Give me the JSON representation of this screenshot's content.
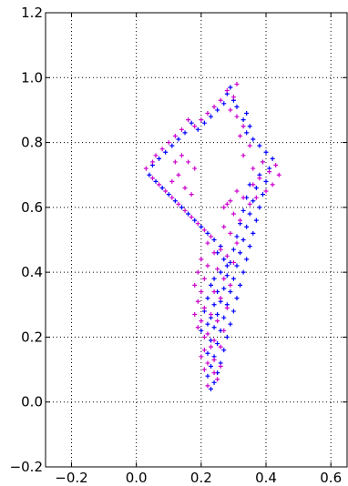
{
  "chart_data": {
    "type": "scatter",
    "title": "",
    "xlabel": "",
    "ylabel": "",
    "xlim": [
      -0.28,
      0.65
    ],
    "ylim": [
      -0.2,
      1.2
    ],
    "xticks": [
      -0.2,
      0.0,
      0.2,
      0.4,
      0.6
    ],
    "yticks": [
      -0.2,
      0.0,
      0.2,
      0.4,
      0.6,
      0.8,
      1.0,
      1.2
    ],
    "xtick_labels": [
      "−0.2",
      "0.0",
      "0.2",
      "0.4",
      "0.6"
    ],
    "ytick_labels": [
      "−0.2",
      "0.0",
      "0.2",
      "0.4",
      "0.6",
      "0.8",
      "1.0",
      "1.2"
    ],
    "grid": true,
    "grid_style": "dotted",
    "legend": false,
    "marker": "+",
    "series": [
      {
        "color": "#0000ff",
        "points": [
          [
            0.23,
            0.04
          ],
          [
            0.24,
            0.06
          ],
          [
            0.22,
            0.08
          ],
          [
            0.25,
            0.09
          ],
          [
            0.23,
            0.11
          ],
          [
            0.26,
            0.12
          ],
          [
            0.24,
            0.14
          ],
          [
            0.22,
            0.15
          ],
          [
            0.27,
            0.16
          ],
          [
            0.25,
            0.18
          ],
          [
            0.23,
            0.19
          ],
          [
            0.28,
            0.2
          ],
          [
            0.26,
            0.22
          ],
          [
            0.24,
            0.23
          ],
          [
            0.29,
            0.24
          ],
          [
            0.27,
            0.26
          ],
          [
            0.25,
            0.27
          ],
          [
            0.3,
            0.28
          ],
          [
            0.28,
            0.3
          ],
          [
            0.26,
            0.31
          ],
          [
            0.31,
            0.32
          ],
          [
            0.29,
            0.34
          ],
          [
            0.27,
            0.35
          ],
          [
            0.32,
            0.36
          ],
          [
            0.3,
            0.38
          ],
          [
            0.28,
            0.39
          ],
          [
            0.33,
            0.4
          ],
          [
            0.31,
            0.42
          ],
          [
            0.29,
            0.43
          ],
          [
            0.34,
            0.44
          ],
          [
            0.32,
            0.46
          ],
          [
            0.3,
            0.47
          ],
          [
            0.35,
            0.48
          ],
          [
            0.33,
            0.5
          ],
          [
            0.31,
            0.51
          ],
          [
            0.36,
            0.52
          ],
          [
            0.34,
            0.54
          ],
          [
            0.32,
            0.55
          ],
          [
            0.37,
            0.56
          ],
          [
            0.35,
            0.58
          ],
          [
            0.33,
            0.59
          ],
          [
            0.38,
            0.6
          ],
          [
            0.36,
            0.62
          ],
          [
            0.34,
            0.63
          ],
          [
            0.39,
            0.64
          ],
          [
            0.37,
            0.66
          ],
          [
            0.35,
            0.67
          ],
          [
            0.4,
            0.68
          ],
          [
            0.38,
            0.7
          ],
          [
            0.41,
            0.72
          ],
          [
            0.39,
            0.74
          ],
          [
            0.42,
            0.75
          ],
          [
            0.4,
            0.77
          ],
          [
            0.38,
            0.79
          ],
          [
            0.36,
            0.81
          ],
          [
            0.34,
            0.83
          ],
          [
            0.35,
            0.85
          ],
          [
            0.33,
            0.87
          ],
          [
            0.34,
            0.89
          ],
          [
            0.31,
            0.91
          ],
          [
            0.3,
            0.93
          ],
          [
            0.28,
            0.95
          ],
          [
            0.29,
            0.97
          ],
          [
            0.27,
            0.92
          ],
          [
            0.25,
            0.9
          ],
          [
            0.23,
            0.88
          ],
          [
            0.21,
            0.86
          ],
          [
            0.19,
            0.84
          ],
          [
            0.17,
            0.86
          ],
          [
            0.15,
            0.83
          ],
          [
            0.13,
            0.81
          ],
          [
            0.11,
            0.79
          ],
          [
            0.09,
            0.77
          ],
          [
            0.07,
            0.75
          ],
          [
            0.05,
            0.73
          ],
          [
            0.04,
            0.7
          ],
          [
            0.06,
            0.68
          ],
          [
            0.08,
            0.66
          ],
          [
            0.1,
            0.64
          ],
          [
            0.12,
            0.62
          ],
          [
            0.14,
            0.6
          ],
          [
            0.16,
            0.58
          ],
          [
            0.18,
            0.56
          ],
          [
            0.2,
            0.54
          ],
          [
            0.22,
            0.52
          ],
          [
            0.24,
            0.5
          ],
          [
            0.26,
            0.48
          ],
          [
            0.25,
            0.46
          ],
          [
            0.27,
            0.44
          ],
          [
            0.28,
            0.42
          ],
          [
            0.26,
            0.4
          ],
          [
            0.24,
            0.38
          ],
          [
            0.23,
            0.36
          ],
          [
            0.25,
            0.34
          ],
          [
            0.22,
            0.32
          ],
          [
            0.24,
            0.3
          ],
          [
            0.21,
            0.28
          ],
          [
            0.23,
            0.26
          ],
          [
            0.22,
            0.24
          ],
          [
            0.2,
            0.22
          ]
        ]
      },
      {
        "color": "#cc00cc",
        "points": [
          [
            0.22,
            0.05
          ],
          [
            0.25,
            0.07
          ],
          [
            0.21,
            0.1
          ],
          [
            0.26,
            0.11
          ],
          [
            0.24,
            0.13
          ],
          [
            0.21,
            0.16
          ],
          [
            0.26,
            0.17
          ],
          [
            0.24,
            0.19
          ],
          [
            0.22,
            0.21
          ],
          [
            0.27,
            0.22
          ],
          [
            0.25,
            0.25
          ],
          [
            0.23,
            0.27
          ],
          [
            0.28,
            0.29
          ],
          [
            0.26,
            0.32
          ],
          [
            0.24,
            0.34
          ],
          [
            0.29,
            0.36
          ],
          [
            0.27,
            0.38
          ],
          [
            0.25,
            0.41
          ],
          [
            0.3,
            0.43
          ],
          [
            0.28,
            0.45
          ],
          [
            0.26,
            0.47
          ],
          [
            0.31,
            0.49
          ],
          [
            0.29,
            0.52
          ],
          [
            0.27,
            0.54
          ],
          [
            0.32,
            0.56
          ],
          [
            0.3,
            0.58
          ],
          [
            0.28,
            0.61
          ],
          [
            0.33,
            0.63
          ],
          [
            0.31,
            0.65
          ],
          [
            0.36,
            0.67
          ],
          [
            0.38,
            0.69
          ],
          [
            0.36,
            0.72
          ],
          [
            0.39,
            0.74
          ],
          [
            0.41,
            0.71
          ],
          [
            0.43,
            0.73
          ],
          [
            0.44,
            0.7
          ],
          [
            0.42,
            0.67
          ],
          [
            0.4,
            0.65
          ],
          [
            0.37,
            0.63
          ],
          [
            0.35,
            0.61
          ],
          [
            0.33,
            0.76
          ],
          [
            0.35,
            0.79
          ],
          [
            0.32,
            0.82
          ],
          [
            0.33,
            0.85
          ],
          [
            0.31,
            0.88
          ],
          [
            0.29,
            0.9
          ],
          [
            0.3,
            0.94
          ],
          [
            0.28,
            0.96
          ],
          [
            0.31,
            0.98
          ],
          [
            0.26,
            0.93
          ],
          [
            0.24,
            0.91
          ],
          [
            0.22,
            0.89
          ],
          [
            0.2,
            0.87
          ],
          [
            0.18,
            0.85
          ],
          [
            0.16,
            0.87
          ],
          [
            0.14,
            0.84
          ],
          [
            0.12,
            0.82
          ],
          [
            0.1,
            0.8
          ],
          [
            0.08,
            0.78
          ],
          [
            0.06,
            0.76
          ],
          [
            0.05,
            0.74
          ],
          [
            0.03,
            0.72
          ],
          [
            0.05,
            0.69
          ],
          [
            0.07,
            0.67
          ],
          [
            0.09,
            0.65
          ],
          [
            0.11,
            0.63
          ],
          [
            0.13,
            0.61
          ],
          [
            0.15,
            0.59
          ],
          [
            0.17,
            0.57
          ],
          [
            0.19,
            0.55
          ],
          [
            0.21,
            0.53
          ],
          [
            0.23,
            0.51
          ],
          [
            0.22,
            0.49
          ],
          [
            0.24,
            0.46
          ],
          [
            0.2,
            0.44
          ],
          [
            0.22,
            0.42
          ],
          [
            0.19,
            0.4
          ],
          [
            0.21,
            0.38
          ],
          [
            0.18,
            0.36
          ],
          [
            0.2,
            0.34
          ],
          [
            0.19,
            0.31
          ],
          [
            0.21,
            0.29
          ],
          [
            0.18,
            0.27
          ],
          [
            0.2,
            0.25
          ],
          [
            0.19,
            0.23
          ],
          [
            0.21,
            0.2
          ],
          [
            0.23,
            0.17
          ],
          [
            0.2,
            0.14
          ],
          [
            0.22,
            0.12
          ],
          [
            0.24,
            0.09
          ],
          [
            0.15,
            0.66
          ],
          [
            0.17,
            0.64
          ],
          [
            0.13,
            0.7
          ],
          [
            0.11,
            0.68
          ],
          [
            0.16,
            0.74
          ],
          [
            0.18,
            0.72
          ],
          [
            0.14,
            0.76
          ],
          [
            0.12,
            0.74
          ],
          [
            0.27,
            0.6
          ],
          [
            0.29,
            0.62
          ]
        ]
      }
    ]
  }
}
